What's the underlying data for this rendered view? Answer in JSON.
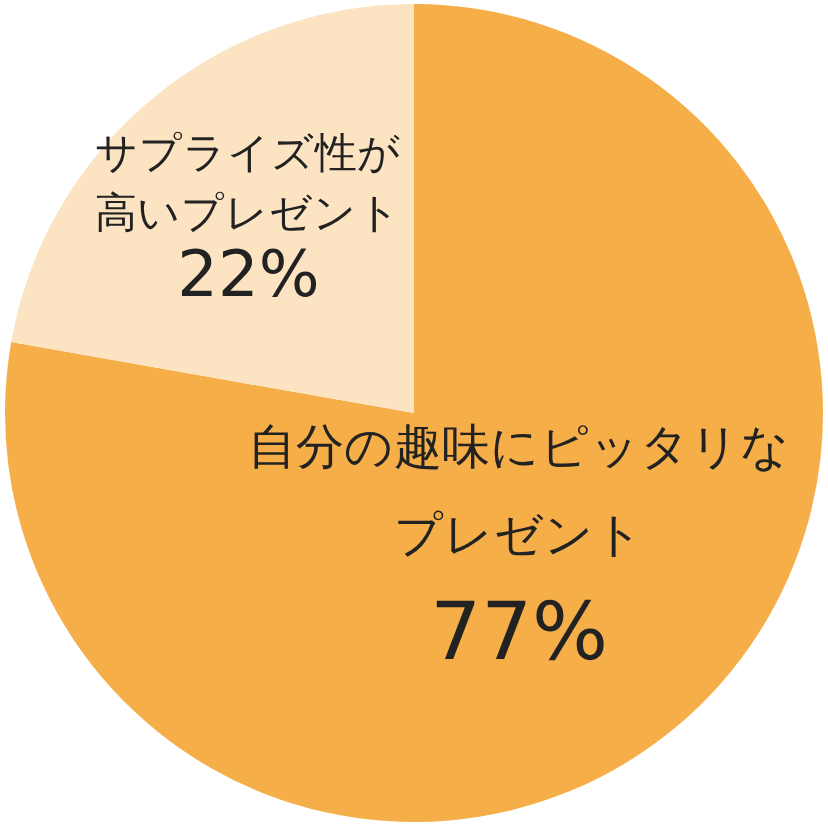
{
  "chart_data": {
    "type": "pie",
    "categories": [
      "自分の趣味にピッタリなプレゼント",
      "サプライズ性が高いプレゼント"
    ],
    "values": [
      77,
      22
    ],
    "colors": [
      "#f5ae48",
      "#fce3c2"
    ],
    "value_labels": [
      "77%",
      "22%"
    ],
    "legend": false
  }
}
